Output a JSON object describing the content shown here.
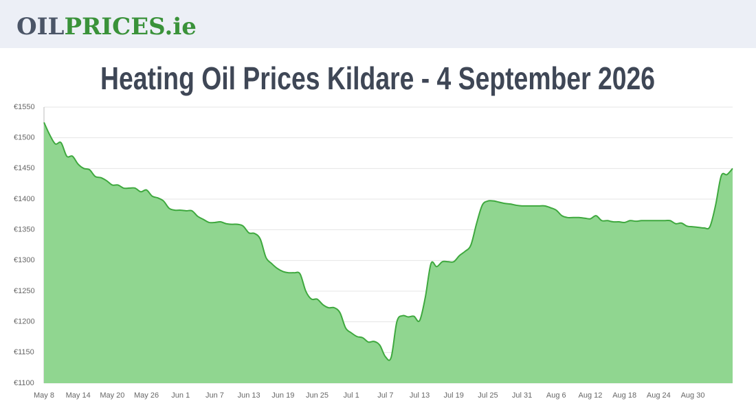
{
  "header": {
    "logo_part1": "OIL",
    "logo_part2": "PRICES.ie"
  },
  "chart_data": {
    "type": "area",
    "title": "Heating Oil Prices Kildare - 4 September 2026",
    "categories": [
      "May 8",
      null,
      null,
      null,
      null,
      null,
      "May 14",
      null,
      null,
      null,
      null,
      null,
      "May 20",
      null,
      null,
      null,
      null,
      null,
      "May 26",
      null,
      null,
      null,
      null,
      null,
      "Jun 1",
      null,
      null,
      null,
      null,
      null,
      "Jun 7",
      null,
      null,
      null,
      null,
      null,
      "Jun 13",
      null,
      null,
      null,
      null,
      null,
      "Jun 19",
      null,
      null,
      null,
      null,
      null,
      "Jun 25",
      null,
      null,
      null,
      null,
      null,
      "Jul 1",
      null,
      null,
      null,
      null,
      null,
      "Jul 7",
      null,
      null,
      null,
      null,
      null,
      "Jul 13",
      null,
      null,
      null,
      null,
      null,
      "Jul 19",
      null,
      null,
      null,
      null,
      null,
      "Jul 25",
      null,
      null,
      null,
      null,
      null,
      "Jul 31",
      null,
      null,
      null,
      null,
      null,
      "Aug 6",
      null,
      null,
      null,
      null,
      null,
      "Aug 12",
      null,
      null,
      null,
      null,
      null,
      "Aug 18",
      null,
      null,
      null,
      null,
      null,
      "Aug 24",
      null,
      null,
      null,
      null,
      null,
      "Aug 30",
      null,
      null,
      null,
      null,
      null,
      null,
      null
    ],
    "values": [
      1525,
      1505,
      1490,
      1492,
      1470,
      1470,
      1457,
      1450,
      1448,
      1437,
      1435,
      1430,
      1423,
      1423,
      1418,
      1418,
      1418,
      1412,
      1415,
      1405,
      1402,
      1397,
      1385,
      1382,
      1382,
      1381,
      1381,
      1372,
      1367,
      1362,
      1362,
      1363,
      1360,
      1359,
      1359,
      1356,
      1345,
      1344,
      1335,
      1305,
      1295,
      1287,
      1282,
      1280,
      1280,
      1278,
      1250,
      1237,
      1237,
      1228,
      1223,
      1223,
      1215,
      1190,
      1182,
      1176,
      1174,
      1167,
      1168,
      1162,
      1143,
      1142,
      1200,
      1210,
      1208,
      1209,
      1202,
      1240,
      1295,
      1290,
      1298,
      1298,
      1298,
      1308,
      1315,
      1325,
      1360,
      1390,
      1397,
      1397,
      1395,
      1393,
      1392,
      1390,
      1389,
      1389,
      1389,
      1389,
      1389,
      1386,
      1382,
      1373,
      1370,
      1370,
      1370,
      1369,
      1368,
      1373,
      1365,
      1365,
      1363,
      1363,
      1362,
      1365,
      1364,
      1365,
      1365,
      1365,
      1365,
      1365,
      1365,
      1360,
      1361,
      1356,
      1355,
      1354,
      1353,
      1355,
      1390,
      1438,
      1440,
      1450
    ],
    "color": "#3ea83e",
    "fill_color": "#90d690",
    "ylim": [
      1100,
      1550
    ],
    "yticks": [
      {
        "value": 1100,
        "label": "€1100"
      },
      {
        "value": 1150,
        "label": "€1150"
      },
      {
        "value": 1200,
        "label": "€1200"
      },
      {
        "value": 1250,
        "label": "€1250"
      },
      {
        "value": 1300,
        "label": "€1300"
      },
      {
        "value": 1350,
        "label": "€1350"
      },
      {
        "value": 1400,
        "label": "€1400"
      },
      {
        "value": 1450,
        "label": "€1450"
      },
      {
        "value": 1500,
        "label": "€1500"
      },
      {
        "value": 1550,
        "label": "€1550"
      }
    ],
    "grid": true
  }
}
